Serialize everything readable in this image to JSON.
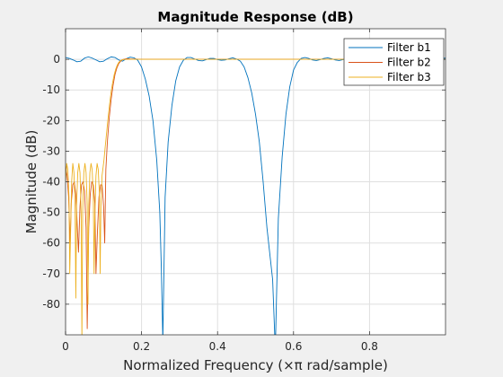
{
  "chart_data": {
    "type": "line",
    "title": "Magnitude Response (dB)",
    "xlabel": "Normalized Frequency  (×π rad/sample)",
    "ylabel": "Magnitude (dB)",
    "xlim": [
      0,
      1
    ],
    "ylim": [
      -90,
      10
    ],
    "x_ticks": [
      0,
      0.2,
      0.4,
      0.6,
      0.8
    ],
    "x_tick_labels": [
      "0",
      "0.2",
      "0.4",
      "0.6",
      "0.8"
    ],
    "y_ticks": [
      0,
      -10,
      -20,
      -30,
      -40,
      -50,
      -60,
      -70,
      -80
    ],
    "y_tick_labels": [
      "0",
      "-10",
      "-20",
      "-30",
      "-40",
      "-50",
      "-60",
      "-70",
      "-80"
    ],
    "grid": true,
    "legend_position": "top-right",
    "series": [
      {
        "name": "Filter b1",
        "color": "#0072BD",
        "points": [
          [
            0,
            0.6
          ],
          [
            0.01,
            0.3
          ],
          [
            0.02,
            -0.2
          ],
          [
            0.03,
            -0.8
          ],
          [
            0.04,
            -0.6
          ],
          [
            0.05,
            0.4
          ],
          [
            0.06,
            0.8
          ],
          [
            0.07,
            0.4
          ],
          [
            0.08,
            -0.2
          ],
          [
            0.09,
            -0.8
          ],
          [
            0.1,
            -0.6
          ],
          [
            0.11,
            0.2
          ],
          [
            0.12,
            0.8
          ],
          [
            0.13,
            0.6
          ],
          [
            0.14,
            -0.2
          ],
          [
            0.15,
            -0.6
          ],
          [
            0.16,
            0.2
          ],
          [
            0.17,
            0.7
          ],
          [
            0.18,
            0.5
          ],
          [
            0.19,
            -0.3
          ],
          [
            0.2,
            -2.5
          ],
          [
            0.21,
            -6.5
          ],
          [
            0.22,
            -12
          ],
          [
            0.23,
            -20
          ],
          [
            0.24,
            -33
          ],
          [
            0.248,
            -50
          ],
          [
            0.252,
            -68
          ],
          [
            0.256,
            -92
          ],
          [
            0.262,
            -45
          ],
          [
            0.27,
            -27
          ],
          [
            0.28,
            -15
          ],
          [
            0.29,
            -7
          ],
          [
            0.3,
            -2.5
          ],
          [
            0.31,
            -0.3
          ],
          [
            0.32,
            0.6
          ],
          [
            0.33,
            0.6
          ],
          [
            0.34,
            0.1
          ],
          [
            0.35,
            -0.4
          ],
          [
            0.36,
            -0.5
          ],
          [
            0.37,
            -0.1
          ],
          [
            0.38,
            0.3
          ],
          [
            0.39,
            0.3
          ],
          [
            0.4,
            -0.1
          ],
          [
            0.41,
            -0.3
          ],
          [
            0.42,
            -0.2
          ],
          [
            0.43,
            0.2
          ],
          [
            0.44,
            0.5
          ],
          [
            0.45,
            0.1
          ],
          [
            0.46,
            -0.6
          ],
          [
            0.47,
            -2.5
          ],
          [
            0.48,
            -6
          ],
          [
            0.49,
            -11
          ],
          [
            0.5,
            -18
          ],
          [
            0.51,
            -27
          ],
          [
            0.52,
            -40
          ],
          [
            0.53,
            -55
          ],
          [
            0.545,
            -72
          ],
          [
            0.552,
            -95
          ],
          [
            0.56,
            -52
          ],
          [
            0.57,
            -32
          ],
          [
            0.58,
            -18
          ],
          [
            0.59,
            -9
          ],
          [
            0.6,
            -3.5
          ],
          [
            0.61,
            -1
          ],
          [
            0.62,
            0.3
          ],
          [
            0.63,
            0.6
          ],
          [
            0.64,
            0.3
          ],
          [
            0.65,
            -0.2
          ],
          [
            0.66,
            -0.4
          ],
          [
            0.67,
            -0.1
          ],
          [
            0.68,
            0.3
          ],
          [
            0.69,
            0.5
          ],
          [
            0.7,
            0.2
          ],
          [
            0.71,
            -0.2
          ],
          [
            0.72,
            -0.4
          ],
          [
            0.73,
            -0.1
          ],
          [
            0.74,
            0.3
          ],
          [
            0.75,
            0.6
          ],
          [
            0.76,
            0.5
          ],
          [
            0.77,
            0.1
          ],
          [
            0.78,
            -0.4
          ],
          [
            0.79,
            -0.6
          ],
          [
            0.8,
            -0.2
          ],
          [
            0.81,
            0.4
          ],
          [
            0.82,
            0.6
          ],
          [
            0.83,
            0.2
          ],
          [
            0.84,
            -0.3
          ],
          [
            0.85,
            -0.5
          ],
          [
            0.86,
            -0.1
          ],
          [
            0.87,
            0.4
          ],
          [
            0.88,
            0.6
          ],
          [
            0.89,
            0.2
          ],
          [
            0.9,
            -0.2
          ],
          [
            0.91,
            -0.4
          ],
          [
            0.92,
            -0.1
          ],
          [
            0.93,
            0.3
          ],
          [
            0.94,
            0.5
          ],
          [
            0.95,
            0.3
          ],
          [
            0.96,
            -0.1
          ],
          [
            0.97,
            -0.3
          ],
          [
            0.98,
            0
          ],
          [
            0.99,
            0.3
          ],
          [
            1,
            0.4
          ]
        ]
      },
      {
        "name": "Filter b2",
        "color": "#D95319",
        "points": [
          [
            0,
            -35
          ],
          [
            0.004,
            -38
          ],
          [
            0.008,
            -45
          ],
          [
            0.012,
            -60
          ],
          [
            0.015,
            -47
          ],
          [
            0.019,
            -41
          ],
          [
            0.023,
            -40
          ],
          [
            0.027,
            -44
          ],
          [
            0.031,
            -55
          ],
          [
            0.034,
            -63
          ],
          [
            0.038,
            -48
          ],
          [
            0.042,
            -41
          ],
          [
            0.046,
            -40
          ],
          [
            0.05,
            -43
          ],
          [
            0.054,
            -55
          ],
          [
            0.057,
            -88
          ],
          [
            0.061,
            -55
          ],
          [
            0.065,
            -44
          ],
          [
            0.069,
            -40
          ],
          [
            0.073,
            -41
          ],
          [
            0.077,
            -47
          ],
          [
            0.08,
            -70
          ],
          [
            0.084,
            -56
          ],
          [
            0.088,
            -45
          ],
          [
            0.092,
            -41
          ],
          [
            0.096,
            -41
          ],
          [
            0.1,
            -48
          ],
          [
            0.103,
            -60
          ],
          [
            0.106,
            -36
          ],
          [
            0.11,
            -27
          ],
          [
            0.115,
            -19
          ],
          [
            0.12,
            -13
          ],
          [
            0.125,
            -8.5
          ],
          [
            0.13,
            -5
          ],
          [
            0.135,
            -2.8
          ],
          [
            0.14,
            -1.4
          ],
          [
            0.145,
            -0.6
          ],
          [
            0.15,
            -0.1
          ],
          [
            0.16,
            0.2
          ],
          [
            0.17,
            0.1
          ],
          [
            0.2,
            0
          ],
          [
            0.3,
            0
          ],
          [
            0.4,
            0
          ],
          [
            0.5,
            0
          ],
          [
            0.6,
            0
          ],
          [
            0.7,
            0
          ],
          [
            0.8,
            0
          ],
          [
            0.9,
            0
          ],
          [
            1,
            0
          ]
        ]
      },
      {
        "name": "Filter b3",
        "color": "#EDB120",
        "points": [
          [
            0,
            -40
          ],
          [
            0.003,
            -34
          ],
          [
            0.006,
            -36
          ],
          [
            0.009,
            -45
          ],
          [
            0.011,
            -70
          ],
          [
            0.013,
            -58
          ],
          [
            0.016,
            -40
          ],
          [
            0.019,
            -34
          ],
          [
            0.022,
            -37
          ],
          [
            0.025,
            -48
          ],
          [
            0.027,
            -78
          ],
          [
            0.029,
            -48
          ],
          [
            0.032,
            -37
          ],
          [
            0.035,
            -34
          ],
          [
            0.038,
            -37
          ],
          [
            0.041,
            -50
          ],
          [
            0.043,
            -92
          ],
          [
            0.045,
            -50
          ],
          [
            0.048,
            -37
          ],
          [
            0.051,
            -34
          ],
          [
            0.054,
            -37
          ],
          [
            0.057,
            -48
          ],
          [
            0.059,
            -80
          ],
          [
            0.061,
            -48
          ],
          [
            0.064,
            -37
          ],
          [
            0.067,
            -34
          ],
          [
            0.07,
            -36
          ],
          [
            0.073,
            -45
          ],
          [
            0.075,
            -70
          ],
          [
            0.077,
            -52
          ],
          [
            0.08,
            -38
          ],
          [
            0.083,
            -34
          ],
          [
            0.086,
            -36
          ],
          [
            0.089,
            -44
          ],
          [
            0.091,
            -70
          ],
          [
            0.093,
            -48
          ],
          [
            0.096,
            -38
          ],
          [
            0.099,
            -35
          ],
          [
            0.101,
            -33
          ],
          [
            0.104,
            -29
          ],
          [
            0.108,
            -24
          ],
          [
            0.112,
            -19
          ],
          [
            0.116,
            -14.5
          ],
          [
            0.12,
            -10.5
          ],
          [
            0.124,
            -7.5
          ],
          [
            0.128,
            -5
          ],
          [
            0.132,
            -3.2
          ],
          [
            0.136,
            -1.9
          ],
          [
            0.14,
            -1
          ],
          [
            0.145,
            -0.4
          ],
          [
            0.15,
            -0.1
          ],
          [
            0.16,
            0
          ],
          [
            0.2,
            0
          ],
          [
            0.3,
            0
          ],
          [
            0.4,
            0
          ],
          [
            0.5,
            0
          ],
          [
            0.6,
            0
          ],
          [
            0.7,
            0
          ],
          [
            0.8,
            0
          ],
          [
            0.9,
            0
          ],
          [
            1,
            0
          ]
        ]
      }
    ]
  }
}
